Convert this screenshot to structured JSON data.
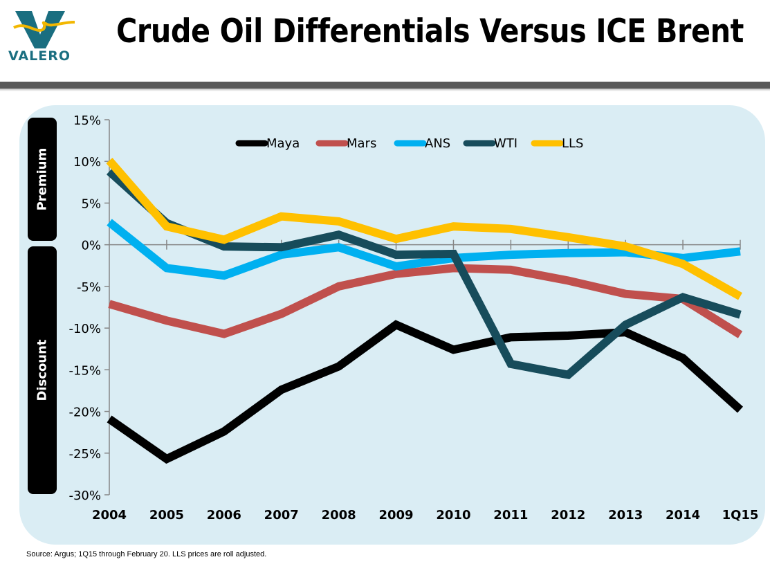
{
  "header": {
    "logo_text": "VALERO",
    "title": "Crude Oil Differentials Versus ICE Brent"
  },
  "side_labels": {
    "premium": "Premium",
    "discount": "Discount"
  },
  "footnote": "Source:  Argus; 1Q15 through February 20. LLS prices are roll adjusted.",
  "chart_data": {
    "type": "line",
    "title": "Crude Oil Differentials Versus ICE Brent",
    "xlabel": "",
    "ylabel": "",
    "categories": [
      "2004",
      "2005",
      "2006",
      "2007",
      "2008",
      "2009",
      "2010",
      "2011",
      "2012",
      "2013",
      "2014",
      "1Q15"
    ],
    "ylim": [
      -30,
      15
    ],
    "yticks": [
      15,
      10,
      5,
      0,
      -5,
      -10,
      -15,
      -20,
      -25,
      -30
    ],
    "ytick_labels": [
      "15%",
      "10%",
      "5%",
      "0%",
      "-5%",
      "-10%",
      "-15%",
      "-20%",
      "-25%",
      "-30%"
    ],
    "grid": false,
    "legend_position": "top-center",
    "series": [
      {
        "name": "Maya",
        "color": "#000000",
        "values": [
          -20.9,
          -25.7,
          -22.4,
          -17.4,
          -14.6,
          -9.6,
          -12.6,
          -11.1,
          -10.9,
          -10.5,
          -13.6,
          -19.8
        ]
      },
      {
        "name": "Mars",
        "color": "#c0504d",
        "values": [
          -7.1,
          -9.1,
          -10.7,
          -8.3,
          -5.0,
          -3.5,
          -2.8,
          -3.0,
          -4.3,
          -5.9,
          -6.5,
          -10.8
        ]
      },
      {
        "name": "ANS",
        "color": "#00b0f0",
        "values": [
          2.7,
          -2.8,
          -3.7,
          -1.2,
          -0.3,
          -2.6,
          -1.6,
          -1.2,
          -1.0,
          -0.9,
          -1.6,
          -0.8
        ]
      },
      {
        "name": "WTI",
        "color": "#174c5b",
        "values": [
          8.8,
          2.6,
          -0.2,
          -0.3,
          1.2,
          -1.2,
          -1.1,
          -14.3,
          -15.6,
          -9.6,
          -6.3,
          -8.4
        ]
      },
      {
        "name": "LLS",
        "color": "#ffc000",
        "values": [
          10.1,
          2.2,
          0.6,
          3.4,
          2.8,
          0.7,
          2.2,
          1.9,
          0.9,
          -0.2,
          -2.3,
          -6.2
        ]
      }
    ]
  }
}
